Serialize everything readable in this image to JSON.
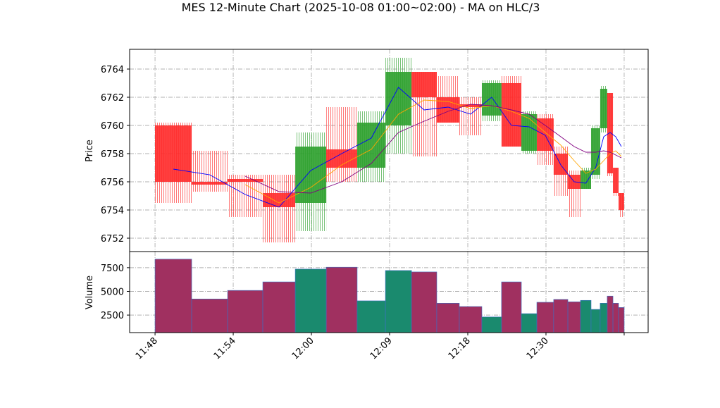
{
  "chart_data": {
    "type": "candlestick",
    "title": "MES 12-Minute Chart (2025-10-08 01:00~02:00) - MA on HLC/3",
    "ylabel": "Price",
    "volume_label": "Volume",
    "x_start": [
      0,
      2.81,
      5.57,
      8.27,
      10.76,
      13.14,
      15.51,
      17.68,
      19.68,
      21.62,
      23.35,
      25.08,
      26.59,
      28.11,
      29.3,
      30.59,
      31.68,
      32.65,
      33.46,
      34.16,
      34.7,
      35.14,
      35.57
    ],
    "x_end": [
      2.81,
      5.57,
      8.27,
      10.76,
      13.14,
      15.51,
      17.68,
      19.68,
      21.62,
      23.35,
      25.08,
      26.59,
      28.11,
      29.3,
      30.59,
      31.68,
      32.65,
      33.46,
      34.16,
      34.7,
      35.14,
      35.57,
      36
    ],
    "open": [
      6760,
      6756,
      6756.2,
      6755.2,
      6754.5,
      6758.3,
      6757,
      6760,
      6763.8,
      6762,
      6761.5,
      6760.7,
      6763,
      6758.2,
      6760.5,
      6758,
      6756.5,
      6755.5,
      6756.5,
      6759.8,
      6762.3,
      6757,
      6755.2
    ],
    "high": [
      6760.2,
      6758.2,
      6756.5,
      6756.5,
      6759.5,
      6761.3,
      6761,
      6764.8,
      6763.8,
      6763.5,
      6762,
      6763.2,
      6763.5,
      6761,
      6760.8,
      6758.5,
      6756.8,
      6757,
      6760,
      6762.8,
      6762.3,
      6757,
      6755.2
    ],
    "low": [
      6754.5,
      6755.3,
      6753.5,
      6751.7,
      6752.5,
      6756,
      6756,
      6758,
      6757.8,
      6760.2,
      6759.3,
      6760.3,
      6758.5,
      6758,
      6757.2,
      6755,
      6753.5,
      6755.5,
      6756.2,
      6759.5,
      6756.4,
      6755,
      6753.5
    ],
    "close": [
      6756,
      6755.8,
      6756,
      6754.2,
      6758.5,
      6757,
      6760.2,
      6763.8,
      6762,
      6760.2,
      6761.3,
      6763,
      6758.5,
      6760.8,
      6758.2,
      6756.5,
      6755.5,
      6756.8,
      6759.8,
      6762.6,
      6756.6,
      6755.2,
      6754
    ],
    "volume": [
      8400,
      4200,
      5100,
      6000,
      7350,
      7550,
      4000,
      7200,
      7050,
      3750,
      3400,
      2300,
      6000,
      2650,
      3850,
      4150,
      3900,
      4050,
      3100,
      3750,
      4500,
      3750,
      3300
    ],
    "up_color": "#2ca02c",
    "down_color": "#ff2a2a",
    "volume_up_color": "#1a8a6e",
    "volume_down_color": "#a03060",
    "ma_lines": [
      {
        "color": "#0000ff",
        "values": [
          6756.9,
          6756.5,
          6755.1,
          6754.2,
          6756.8,
          6758,
          6759.1,
          6762.7,
          6761.1,
          6761.3,
          6760.8,
          6762,
          6760,
          6759.9,
          6759.3,
          6757.2,
          6756,
          6755.9,
          6757,
          6759.2,
          6759.5,
          6759.2,
          6758.5
        ]
      },
      {
        "color": "#ffa500",
        "values": [
          null,
          null,
          6755.8,
          6754.5,
          6755.6,
          6757.2,
          6758.3,
          6760.8,
          6761.8,
          6761.7,
          6761.2,
          6761.4,
          6761,
          6760.5,
          6759.5,
          6758.6,
          6757.5,
          6756.6,
          6756.9,
          6757.5,
          6758,
          6758.2,
          6757.8
        ]
      },
      {
        "color": "#800080",
        "values": [
          null,
          null,
          6756.4,
          6755.3,
          6755.2,
          6756,
          6757.3,
          6759.5,
          6760.3,
          6761,
          6761.5,
          6761.4,
          6761.1,
          6760.8,
          6760,
          6759.2,
          6758.5,
          6758.1,
          6758.1,
          6758.2,
          6758.1,
          6757.9,
          6757.7
        ]
      }
    ],
    "xlim": [
      -1.95,
      37.84
    ],
    "xticks": [
      {
        "value": 0,
        "label": "11:48"
      },
      {
        "value": 6,
        "label": "11:54"
      },
      {
        "value": 12,
        "label": "12:00"
      },
      {
        "value": 18,
        "label": "12:09"
      },
      {
        "value": 24,
        "label": "12:18"
      },
      {
        "value": 30,
        "label": "12:30"
      },
      {
        "value": 36,
        "label": null
      }
    ],
    "ylim": [
      6751.05,
      6765.4
    ],
    "yticks": [
      6752,
      6754,
      6756,
      6758,
      6760,
      6762,
      6764
    ],
    "volume_ylim": [
      650,
      9200
    ],
    "volume_yticks": [
      2500,
      5000,
      7500
    ],
    "grid": true
  }
}
